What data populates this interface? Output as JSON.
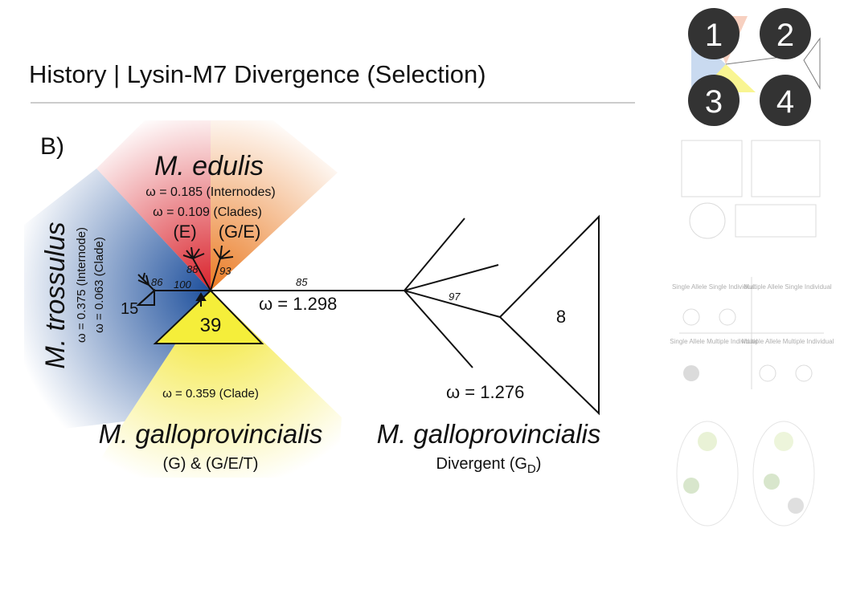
{
  "slide": {
    "title": "History | Lysin-M7 Divergence (Selection)",
    "panel": "B)",
    "edulis": {
      "name": "M. edulis",
      "internodes": "ω = 0.185 (Internodes)",
      "clades": "ω = 0.109 (Clades)",
      "e": "(E)",
      "ge": "(G/E)"
    },
    "trossulus": {
      "name": "M. trossulus",
      "internode": "ω = 0.375 (Internode)",
      "clade": "ω = 0.063 (Clade)",
      "count": "15"
    },
    "support": {
      "s86": "86",
      "s100": "100",
      "s88": "88",
      "s93": "93",
      "s85": "85",
      "s97": "97"
    },
    "clade39": "39",
    "main_omega": "ω = 1.298",
    "clade8": "8",
    "divergent_omega": "ω = 1.276",
    "gallo_clade": "ω = 0.359 (Clade)",
    "gallo": {
      "name": "M. galloprovincialis",
      "groups": "(G) & (G/E/T)"
    },
    "gallo_div": {
      "name": "M. galloprovincialis",
      "label": "Divergent (G",
      "sub": "D",
      "close": ")"
    },
    "thumbnails": {
      "badges": [
        "1",
        "2",
        "3",
        "4"
      ],
      "allele": [
        "Single Allele Single Individual",
        "Multiple Allele Single Individual",
        "Single Allele Multiple Individual",
        "Multiple Allele Multiple Individual"
      ]
    }
  }
}
